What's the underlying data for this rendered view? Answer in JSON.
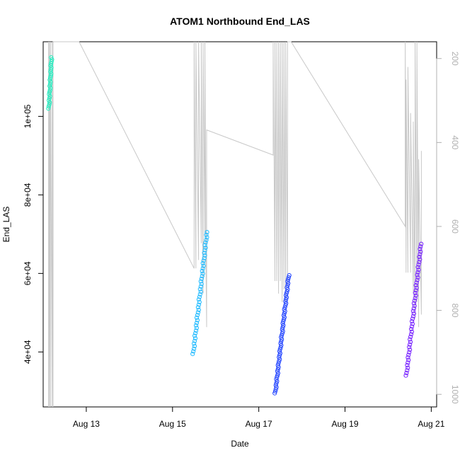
{
  "chart_data": {
    "type": "scatter",
    "title": "ATOM1 Northbound End_LAS",
    "xlabel": "Date",
    "ylabel": "End_LAS",
    "x_unit": "date",
    "year": "",
    "xlim": [
      "Aug 12 00:00",
      "Aug 21 03:00"
    ],
    "ylim": [
      26000,
      119000
    ],
    "x_ticks": [
      "Aug 13",
      "Aug 15",
      "Aug 17",
      "Aug 19",
      "Aug 21"
    ],
    "y_ticks": [
      {
        "value": 40000,
        "label": "4e+04"
      },
      {
        "value": 60000,
        "label": "6e+04"
      },
      {
        "value": 80000,
        "label": "8e+04"
      },
      {
        "value": 100000,
        "label": "1e+05"
      }
    ],
    "right_axis": {
      "ylim": [
        1030,
        160
      ],
      "ticks": [
        {
          "value": 200,
          "label": "200"
        },
        {
          "value": 400,
          "label": "400"
        },
        {
          "value": 600,
          "label": "600"
        },
        {
          "value": 800,
          "label": "800"
        },
        {
          "value": 1000,
          "label": "1000"
        }
      ],
      "color": "#b0b0b0"
    },
    "grid": false,
    "legend": "none",
    "series": [
      {
        "color": "#22eec0",
        "x": [
          "Aug 12 03:10",
          "Aug 12 04:40"
        ],
        "y": [
          102000,
          115000
        ],
        "n": 26
      },
      {
        "color": "#22bbff",
        "x": [
          "Aug 15 11:30",
          "Aug 15 19:10"
        ],
        "y": [
          39500,
          70500
        ],
        "n": 48
      },
      {
        "color": "#2244ff",
        "x": [
          "Aug 17 09:10",
          "Aug 17 16:40"
        ],
        "y": [
          29500,
          59500
        ],
        "n": 60
      },
      {
        "color": "#7722ff",
        "x": [
          "Aug 20 10:10",
          "Aug 20 18:20"
        ],
        "y": [
          34000,
          67500
        ],
        "n": 52
      }
    ],
    "secondary_line": {
      "color": "#c8c8c8",
      "points": [
        [
          "Aug 12 03:00",
          1030
        ],
        [
          "Aug 12 03:00",
          160
        ],
        [
          "Aug 12 03:30",
          1030
        ],
        [
          "Aug 12 03:30",
          160
        ],
        [
          "Aug 12 04:00",
          1030
        ],
        [
          "Aug 12 04:00",
          160
        ],
        [
          "Aug 12 05:00",
          1030
        ],
        [
          "Aug 12 05:00",
          160
        ],
        [
          "Aug 12 05:30",
          1030
        ],
        [
          "Aug 12 05:30",
          160
        ],
        [
          "Aug 12 20:00",
          160
        ],
        [
          "Aug 15 12:00",
          700
        ],
        [
          "Aug 15 12:00",
          160
        ],
        [
          "Aug 15 13:00",
          700
        ],
        [
          "Aug 15 13:00",
          160
        ],
        [
          "Aug 15 14:30",
          680
        ],
        [
          "Aug 15 14:30",
          160
        ],
        [
          "Aug 15 16:00",
          640
        ],
        [
          "Aug 15 16:00",
          160
        ],
        [
          "Aug 15 17:00",
          760
        ],
        [
          "Aug 15 17:00",
          160
        ],
        [
          "Aug 15 18:00",
          620
        ],
        [
          "Aug 15 18:00",
          160
        ],
        [
          "Aug 15 18:30",
          560
        ],
        [
          "Aug 15 18:30",
          650
        ],
        [
          "Aug 15 19:00",
          840
        ],
        [
          "Aug 15 19:00",
          370
        ],
        [
          "Aug 17 08:00",
          430
        ],
        [
          "Aug 17 08:00",
          160
        ],
        [
          "Aug 17 09:00",
          730
        ],
        [
          "Aug 17 09:00",
          160
        ],
        [
          "Aug 17 10:00",
          730
        ],
        [
          "Aug 17 10:00",
          160
        ],
        [
          "Aug 17 11:00",
          760
        ],
        [
          "Aug 17 11:00",
          160
        ],
        [
          "Aug 17 12:00",
          730
        ],
        [
          "Aug 17 12:00",
          160
        ],
        [
          "Aug 17 13:00",
          780
        ],
        [
          "Aug 17 13:00",
          160
        ],
        [
          "Aug 17 14:00",
          750
        ],
        [
          "Aug 17 14:00",
          160
        ],
        [
          "Aug 17 15:00",
          780
        ],
        [
          "Aug 17 15:00",
          160
        ],
        [
          "Aug 17 16:00",
          740
        ],
        [
          "Aug 17 16:00",
          160
        ],
        [
          "Aug 17 18:00",
          160
        ],
        [
          "Aug 20 09:30",
          600
        ],
        [
          "Aug 20 09:30",
          160
        ],
        [
          "Aug 20 10:00",
          710
        ],
        [
          "Aug 20 10:00",
          250
        ],
        [
          "Aug 20 11:00",
          710
        ],
        [
          "Aug 20 11:00",
          220
        ],
        [
          "Aug 20 12:30",
          710
        ],
        [
          "Aug 20 12:30",
          330
        ],
        [
          "Aug 20 14:00",
          760
        ],
        [
          "Aug 20 14:00",
          350
        ],
        [
          "Aug 20 15:00",
          820
        ],
        [
          "Aug 20 15:00",
          160
        ],
        [
          "Aug 20 16:00",
          780
        ],
        [
          "Aug 20 16:00",
          160
        ],
        [
          "Aug 20 17:00",
          840
        ],
        [
          "Aug 20 17:00",
          440
        ],
        [
          "Aug 20 18:30",
          810
        ],
        [
          "Aug 20 18:30",
          420
        ]
      ]
    }
  }
}
